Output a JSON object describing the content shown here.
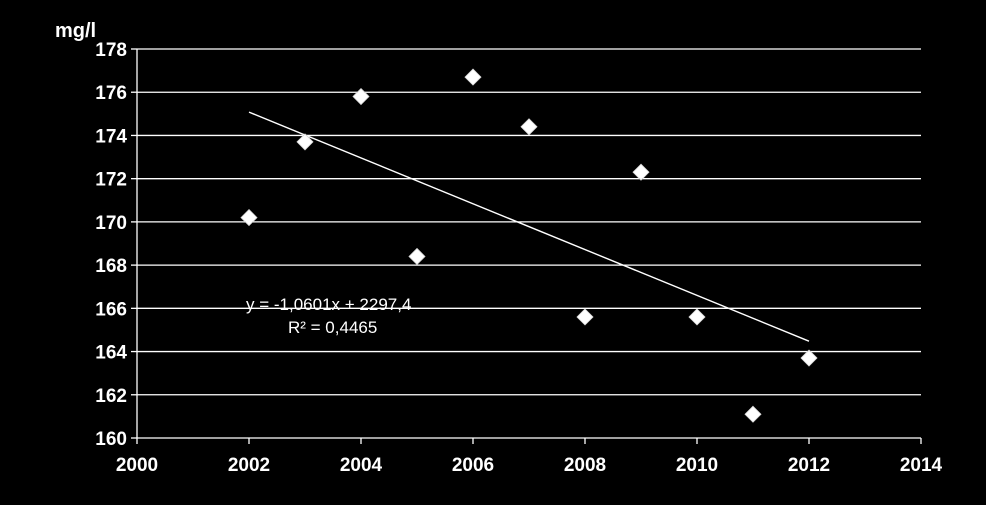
{
  "chart_data": {
    "type": "scatter",
    "ylabel": "mg/l",
    "xlim": [
      2000,
      2014
    ],
    "ylim": [
      160,
      178
    ],
    "x_ticks": [
      2000,
      2002,
      2004,
      2006,
      2008,
      2010,
      2012,
      2014
    ],
    "y_ticks": [
      160,
      162,
      164,
      166,
      168,
      170,
      172,
      174,
      176,
      178
    ],
    "grid": true,
    "colors": {
      "background": "#000000",
      "grid": "#ffffff",
      "marker": "#ffffff",
      "text": "#ffffff"
    },
    "series": [
      {
        "marker": "diamond",
        "points": [
          {
            "x": 2002,
            "y": 170.2
          },
          {
            "x": 2003,
            "y": 173.7
          },
          {
            "x": 2004,
            "y": 175.8
          },
          {
            "x": 2005,
            "y": 168.4
          },
          {
            "x": 2006,
            "y": 176.7
          },
          {
            "x": 2007,
            "y": 174.4
          },
          {
            "x": 2008,
            "y": 165.6
          },
          {
            "x": 2009,
            "y": 172.3
          },
          {
            "x": 2010,
            "y": 165.6
          },
          {
            "x": 2011,
            "y": 161.1
          },
          {
            "x": 2012,
            "y": 163.7
          }
        ]
      }
    ],
    "trendline": {
      "slope": -1.0601,
      "intercept": 2297.4,
      "x_range": [
        2002,
        2012
      ],
      "equation": "y = -1,0601x + 2297,4",
      "r_squared": "R² = 0,4465"
    }
  }
}
